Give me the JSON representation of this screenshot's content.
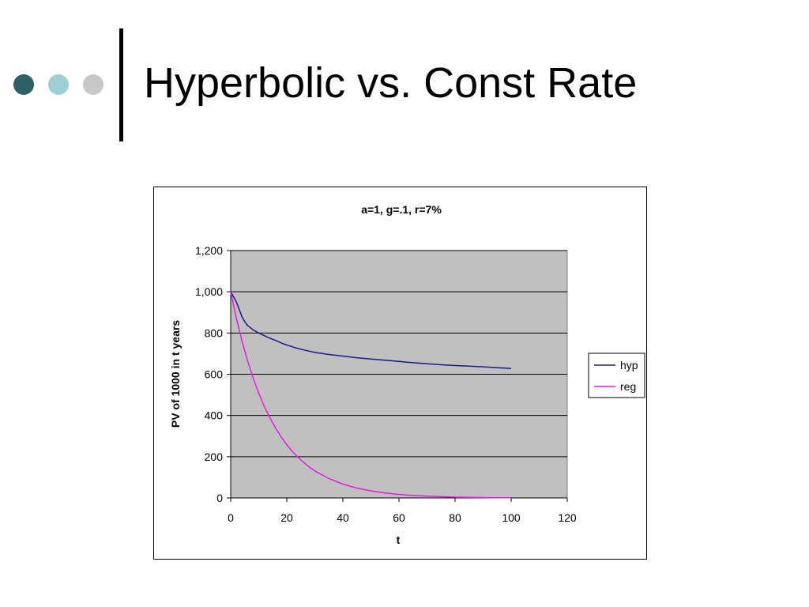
{
  "slide": {
    "title": "Hyperbolic vs. Const Rate",
    "bullet_colors": [
      "#2e6066",
      "#9fcfd2",
      "#c8c8c8"
    ]
  },
  "chart_data": {
    "type": "line",
    "title": "a=1, g=.1, r=7%",
    "xlabel": "t",
    "ylabel": "PV of 1000 in t years",
    "xlim": [
      0,
      120
    ],
    "ylim": [
      0,
      1200
    ],
    "x_ticks": [
      0,
      20,
      40,
      60,
      80,
      100,
      120
    ],
    "y_ticks": [
      0,
      200,
      400,
      600,
      800,
      1000,
      1200
    ],
    "x_tick_labels": [
      "0",
      "20",
      "40",
      "60",
      "80",
      "100",
      "120"
    ],
    "y_tick_labels": [
      "0",
      "200",
      "400",
      "600",
      "800",
      "1,000",
      "1,200"
    ],
    "grid": "horizontal",
    "plot_background": "#c0c0c0",
    "legend_position": "right",
    "series": [
      {
        "name": "hyp",
        "color": "#1a1a8c",
        "points": [
          [
            0,
            1000
          ],
          [
            2,
            952
          ],
          [
            4,
            880
          ],
          [
            5,
            855
          ],
          [
            6,
            837
          ],
          [
            8,
            815
          ],
          [
            10,
            800
          ],
          [
            12,
            787
          ],
          [
            14,
            775
          ],
          [
            16,
            764
          ],
          [
            18,
            752
          ],
          [
            20,
            742
          ],
          [
            22,
            733
          ],
          [
            24,
            725
          ],
          [
            26,
            718
          ],
          [
            28,
            712
          ],
          [
            30,
            706
          ],
          [
            35,
            696
          ],
          [
            40,
            688
          ],
          [
            45,
            680
          ],
          [
            50,
            674
          ],
          [
            55,
            668
          ],
          [
            60,
            662
          ],
          [
            65,
            656
          ],
          [
            70,
            651
          ],
          [
            75,
            646
          ],
          [
            80,
            642
          ],
          [
            85,
            639
          ],
          [
            90,
            636
          ],
          [
            95,
            632
          ],
          [
            100,
            628
          ]
        ]
      },
      {
        "name": "reg",
        "color": "#e020e0",
        "points": [
          [
            0,
            1000
          ],
          [
            2,
            873
          ],
          [
            4,
            763
          ],
          [
            6,
            666
          ],
          [
            8,
            582
          ],
          [
            10,
            508
          ],
          [
            12,
            444
          ],
          [
            14,
            388
          ],
          [
            16,
            339
          ],
          [
            18,
            296
          ],
          [
            20,
            258
          ],
          [
            22,
            226
          ],
          [
            24,
            197
          ],
          [
            26,
            172
          ],
          [
            28,
            150
          ],
          [
            30,
            131
          ],
          [
            35,
            94
          ],
          [
            40,
            67
          ],
          [
            45,
            48
          ],
          [
            50,
            34
          ],
          [
            55,
            24
          ],
          [
            60,
            17
          ],
          [
            65,
            12
          ],
          [
            70,
            9
          ],
          [
            75,
            6
          ],
          [
            80,
            4
          ],
          [
            85,
            3
          ],
          [
            90,
            2
          ],
          [
            95,
            1
          ],
          [
            100,
            1
          ]
        ]
      }
    ]
  }
}
